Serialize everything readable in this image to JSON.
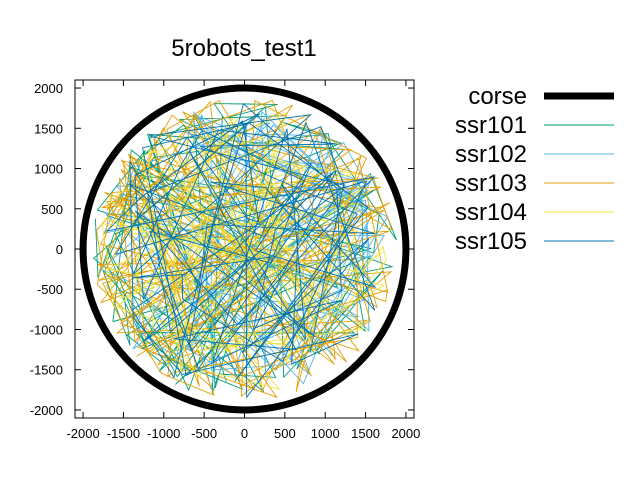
{
  "chart_data": {
    "type": "line",
    "title": "5robots_test1",
    "xlabel": "",
    "ylabel": "",
    "xlim": [
      -2100,
      2100
    ],
    "ylim": [
      -2100,
      2100
    ],
    "xticks": [
      -2000,
      -1500,
      -1000,
      -500,
      0,
      500,
      1000,
      1500,
      2000
    ],
    "yticks": [
      -2000,
      -1500,
      -1000,
      -500,
      0,
      500,
      1000,
      1500,
      2000
    ],
    "xtick_labels": [
      "-2000",
      "-1500",
      "-1000",
      "-500",
      "0",
      "500",
      "1000",
      "1500",
      "2000"
    ],
    "ytick_labels": [
      "-2000",
      "-1500",
      "-1000",
      "-500",
      "0",
      "500",
      "1000",
      "1500",
      "2000"
    ],
    "grid": false,
    "legend_position": "outside-right",
    "series": [
      {
        "name": "corse",
        "color": "#000000",
        "kind": "circle",
        "radius": 2000
      },
      {
        "name": "ssr101",
        "color": "#009e73",
        "kind": "trajectory",
        "seed": 11,
        "ring": 1720,
        "spread": 170,
        "points": 90
      },
      {
        "name": "ssr102",
        "color": "#56b4e9",
        "kind": "trajectory",
        "seed": 23,
        "ring": 1650,
        "spread": 220,
        "points": 90
      },
      {
        "name": "ssr103",
        "color": "#e69f00",
        "kind": "trajectory",
        "seed": 37,
        "ring": 1830,
        "spread": 70,
        "points": 110
      },
      {
        "name": "ssr104",
        "color": "#f0e442",
        "kind": "trajectory",
        "seed": 41,
        "ring": 1500,
        "spread": 300,
        "points": 90
      },
      {
        "name": "ssr105",
        "color": "#0072b2",
        "kind": "trajectory",
        "seed": 53,
        "ring": 1600,
        "spread": 260,
        "points": 90
      }
    ]
  }
}
